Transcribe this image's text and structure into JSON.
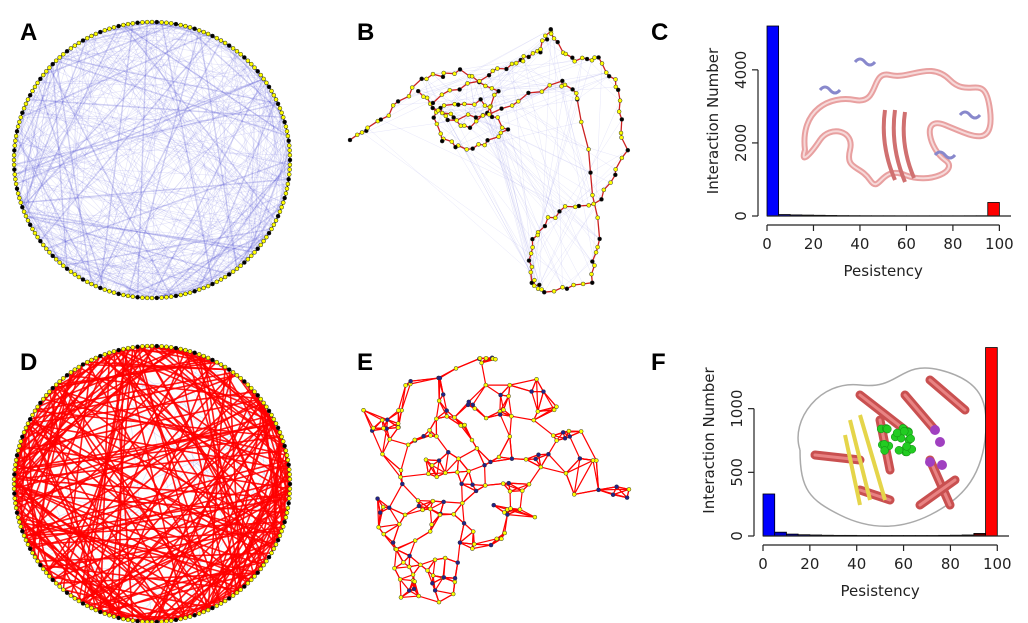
{
  "figure": {
    "panels": {
      "A": {
        "letter": "A",
        "kind": "circular-network",
        "edge_color": "#5a5ad6",
        "node_colors": [
          "#ffff00",
          "#000000"
        ]
      },
      "B": {
        "letter": "B",
        "kind": "force-network",
        "edge_color": "#cc2222",
        "node_colors": [
          "#ffff00",
          "#000000"
        ]
      },
      "C": {
        "letter": "C",
        "kind": "histogram",
        "inset": "protein-tube-rendering"
      },
      "D": {
        "letter": "D",
        "kind": "circular-network",
        "edge_color": "#ff0000",
        "node_colors": [
          "#ffff00",
          "#000000"
        ]
      },
      "E": {
        "letter": "E",
        "kind": "force-network",
        "edge_color": "#ff0000",
        "node_colors": [
          "#ffff00",
          "#000000"
        ]
      },
      "F": {
        "letter": "F",
        "kind": "histogram",
        "inset": "protein-cartoon-rendering"
      }
    }
  },
  "chart_data": [
    {
      "panel": "C",
      "type": "bar",
      "xlabel": "Pesistency",
      "ylabel": "Interaction Number",
      "x_ticks": [
        0,
        20,
        40,
        60,
        80,
        100
      ],
      "y_ticks": [
        0,
        2000,
        4000
      ],
      "xlim": [
        0,
        105
      ],
      "ylim": [
        0,
        5200
      ],
      "bin_width": 5,
      "bins": [
        {
          "x0": 0,
          "value": 5200,
          "color": "#0000ff"
        },
        {
          "x0": 5,
          "value": 40,
          "color": "#0000cc"
        },
        {
          "x0": 10,
          "value": 30,
          "color": "#000099"
        },
        {
          "x0": 15,
          "value": 25,
          "color": "#000088"
        },
        {
          "x0": 20,
          "value": 20,
          "color": "#000066"
        },
        {
          "x0": 25,
          "value": 15,
          "color": "#000044"
        },
        {
          "x0": 30,
          "value": 10,
          "color": "#000033"
        },
        {
          "x0": 35,
          "value": 8,
          "color": "#000000"
        },
        {
          "x0": 40,
          "value": 6,
          "color": "#000000"
        },
        {
          "x0": 45,
          "value": 5,
          "color": "#000000"
        },
        {
          "x0": 50,
          "value": 5,
          "color": "#000000"
        },
        {
          "x0": 55,
          "value": 4,
          "color": "#000000"
        },
        {
          "x0": 60,
          "value": 4,
          "color": "#000000"
        },
        {
          "x0": 65,
          "value": 4,
          "color": "#000000"
        },
        {
          "x0": 70,
          "value": 4,
          "color": "#000000"
        },
        {
          "x0": 75,
          "value": 4,
          "color": "#000000"
        },
        {
          "x0": 80,
          "value": 4,
          "color": "#000000"
        },
        {
          "x0": 85,
          "value": 5,
          "color": "#000000"
        },
        {
          "x0": 90,
          "value": 6,
          "color": "#000000"
        },
        {
          "x0": 95,
          "value": 370,
          "color": "#ff0000"
        }
      ]
    },
    {
      "panel": "F",
      "type": "bar",
      "xlabel": "Pesistency",
      "ylabel": "Interaction Number",
      "x_ticks": [
        0,
        20,
        40,
        60,
        80,
        100
      ],
      "y_ticks": [
        0,
        500,
        1000
      ],
      "xlim": [
        0,
        105
      ],
      "ylim": [
        0,
        1500
      ],
      "bin_width": 5,
      "bins": [
        {
          "x0": 0,
          "value": 330,
          "color": "#0000ff"
        },
        {
          "x0": 5,
          "value": 30,
          "color": "#0000cc"
        },
        {
          "x0": 10,
          "value": 15,
          "color": "#000099"
        },
        {
          "x0": 15,
          "value": 10,
          "color": "#000088"
        },
        {
          "x0": 20,
          "value": 8,
          "color": "#000066"
        },
        {
          "x0": 25,
          "value": 6,
          "color": "#000044"
        },
        {
          "x0": 30,
          "value": 5,
          "color": "#000033"
        },
        {
          "x0": 35,
          "value": 5,
          "color": "#000000"
        },
        {
          "x0": 40,
          "value": 4,
          "color": "#000000"
        },
        {
          "x0": 45,
          "value": 4,
          "color": "#000000"
        },
        {
          "x0": 50,
          "value": 4,
          "color": "#000000"
        },
        {
          "x0": 55,
          "value": 4,
          "color": "#000000"
        },
        {
          "x0": 60,
          "value": 4,
          "color": "#000000"
        },
        {
          "x0": 65,
          "value": 4,
          "color": "#000000"
        },
        {
          "x0": 70,
          "value": 4,
          "color": "#000000"
        },
        {
          "x0": 75,
          "value": 5,
          "color": "#000000"
        },
        {
          "x0": 80,
          "value": 6,
          "color": "#000000"
        },
        {
          "x0": 85,
          "value": 8,
          "color": "#000000"
        },
        {
          "x0": 90,
          "value": 20,
          "color": "#550000"
        },
        {
          "x0": 95,
          "value": 1480,
          "color": "#ff0000"
        }
      ]
    }
  ]
}
